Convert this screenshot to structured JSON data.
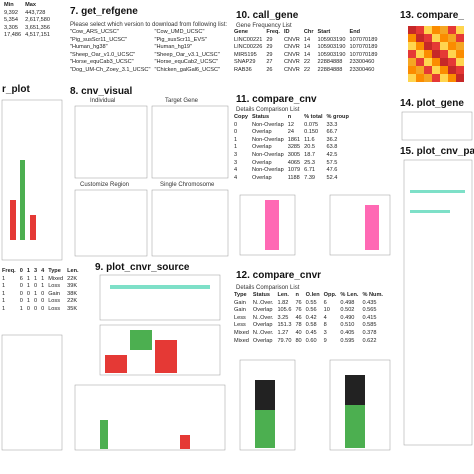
{
  "left": {
    "table": {
      "header": [
        "Min",
        "Max"
      ],
      "rows": [
        [
          "9,392",
          "443,728"
        ],
        [
          "5,354",
          "2,617,580"
        ],
        [
          "3,305",
          "3,651,356"
        ],
        [
          "17,486",
          "4,517,151"
        ]
      ]
    },
    "title": "r_plot",
    "table2": {
      "header": [
        "Freq.",
        "0",
        "1",
        "3",
        "4",
        "Type",
        "Len."
      ],
      "rows": [
        [
          "1",
          "6",
          "1",
          "1",
          "1",
          "Mixed",
          "22K"
        ],
        [
          "1",
          "0",
          "1",
          "0",
          "1",
          "Loss",
          "39K"
        ],
        [
          "1",
          "0",
          "0",
          "1",
          "0",
          "Gain",
          "38K"
        ],
        [
          "1",
          "0",
          "1",
          "0",
          "0",
          "Loss",
          "22K"
        ],
        [
          "1",
          "1",
          "0",
          "0",
          "0",
          "Loss",
          "35K"
        ]
      ]
    }
  },
  "get_refgene": {
    "title": "7. get_refgene",
    "prompt": "Please select which version to download from following list:",
    "options": [
      [
        "\"Cow_ARS_UCSC\"",
        "\"Cow_UMD_UCSC\""
      ],
      [
        "\"Pig_susScr11_UCSC\"",
        "\"Pig_susScr11_EVS\""
      ],
      [
        "\"Human_hg38\"",
        "\"Human_hg19\""
      ],
      [
        "\"Sheep_Oar_v1.0_UCSC\"",
        "\"Sheep_Oar_v3.1_UCSC\""
      ],
      [
        "\"Horse_equCab3_UCSC\"",
        "\"Horse_equCab2_UCSC\""
      ],
      [
        "\"Dog_UM-Ch_Zoey_3.1_UCSC\"",
        "\"Chicken_galGal6_UCSC\""
      ]
    ]
  },
  "cnv_visual": {
    "title": "8. cnv_visual",
    "panels": [
      "Individual",
      "Target Gene",
      "Customize Region",
      "Single Chromosome"
    ]
  },
  "plot_cnvr_source": {
    "title": "9. plot_cnvr_source"
  },
  "call_gene": {
    "title": "10. call_gene",
    "subtitle": "Gene Frequency List",
    "header": [
      "Gene",
      "Freq.",
      "ID",
      "Chr",
      "Start",
      "End"
    ],
    "rows": [
      [
        "LINC00221",
        "29",
        "CNVR",
        "14",
        "105903190",
        "107070189"
      ],
      [
        "LINC00226",
        "29",
        "CNVR",
        "14",
        "105903190",
        "107070189"
      ],
      [
        "MIR5195",
        "29",
        "CNVR",
        "14",
        "105903190",
        "107070189"
      ],
      [
        "SNAP29",
        "27",
        "CNVR",
        "22",
        "22884888",
        "23300460"
      ],
      [
        "RAB36",
        "26",
        "CNVR",
        "22",
        "22884888",
        "23300460"
      ]
    ]
  },
  "compare_cnv": {
    "title": "11. compare_cnv",
    "subtitle": "Details Comparison List",
    "header": [
      "Copy",
      "Status",
      "n",
      "% total",
      "% group"
    ],
    "rows": [
      [
        "0",
        "Non-Overlap",
        "12",
        "0.075",
        "33.3"
      ],
      [
        "0",
        "Overlap",
        "24",
        "0.150",
        "66.7"
      ],
      [
        "1",
        "Non-Overlap",
        "1861",
        "11.6",
        "36.2"
      ],
      [
        "1",
        "Overlap",
        "3285",
        "20.5",
        "63.8"
      ],
      [
        "3",
        "Non-Overlap",
        "3005",
        "18.7",
        "42.5"
      ],
      [
        "3",
        "Overlap",
        "4065",
        "25.3",
        "57.5"
      ],
      [
        "4",
        "Non-Overlap",
        "1079",
        "6.71",
        "47.6"
      ],
      [
        "4",
        "Overlap",
        "1188",
        "7.39",
        "52.4"
      ]
    ]
  },
  "compare_cnvr": {
    "title": "12. compare_cnvr",
    "subtitle": "Details Comparison List",
    "header": [
      "Type",
      "Status",
      "Len.",
      "n",
      "O.len",
      "Opp.",
      "% Len.",
      "% Num."
    ],
    "rows": [
      [
        "Gain",
        "N..Over.",
        "1.82",
        "76",
        "0.55",
        "6",
        "0.498",
        "0.435"
      ],
      [
        "Gain",
        "Overlap",
        "105.6",
        "76",
        "0.56",
        "10",
        "0.502",
        "0.565"
      ],
      [
        "Less",
        "N..Over.",
        "3.25",
        "46",
        "0.42",
        "4",
        "0.490",
        "0.415"
      ],
      [
        "Less",
        "Overlap",
        "151.3",
        "78",
        "0.58",
        "8",
        "0.510",
        "0.585"
      ],
      [
        "Mixed",
        "N..Over.",
        "1.27",
        "40",
        "0.45",
        "3",
        "0.405",
        "0.378"
      ],
      [
        "Mixed",
        "Overlap",
        "79.70",
        "80",
        "0.60",
        "9",
        "0.595",
        "0.622"
      ]
    ]
  },
  "compare": {
    "title": "13. compare_"
  },
  "plot_gene": {
    "title": "14. plot_gene"
  },
  "plot_cnv_path": {
    "title": "15. plot_cnv_pa"
  }
}
